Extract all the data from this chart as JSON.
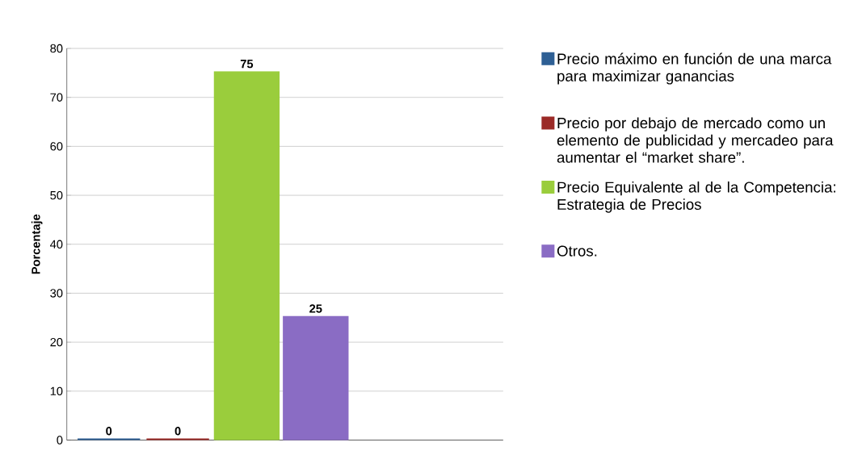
{
  "chart_data": {
    "type": "bar",
    "ylabel": "Porcentaje",
    "categories": [
      null
    ],
    "series": [
      {
        "name": "Precio máximo en función de una marca para maximizar ganancias",
        "color": "#2e5f94",
        "values": [
          0
        ],
        "value_labels": [
          "0"
        ]
      },
      {
        "name": "Precio por debajo de mercado como un elemento de publicidad y mercadeo para aumentar el “market share”.",
        "color": "#9b2a27",
        "values": [
          0
        ],
        "value_labels": [
          "0"
        ]
      },
      {
        "name": "Precio Equivalente al de la Competencia: Estrategia de Precios",
        "color": "#9acd3c",
        "values": [
          75
        ],
        "value_labels": [
          "75"
        ]
      },
      {
        "name": "Otros.",
        "color": "#8a6cc4",
        "values": [
          25
        ],
        "value_labels": [
          "25"
        ]
      }
    ],
    "ylim": [
      0,
      80
    ],
    "yticks": [
      0,
      10,
      20,
      30,
      40,
      50,
      60,
      70,
      80
    ],
    "grid": "y",
    "legend": "right"
  }
}
